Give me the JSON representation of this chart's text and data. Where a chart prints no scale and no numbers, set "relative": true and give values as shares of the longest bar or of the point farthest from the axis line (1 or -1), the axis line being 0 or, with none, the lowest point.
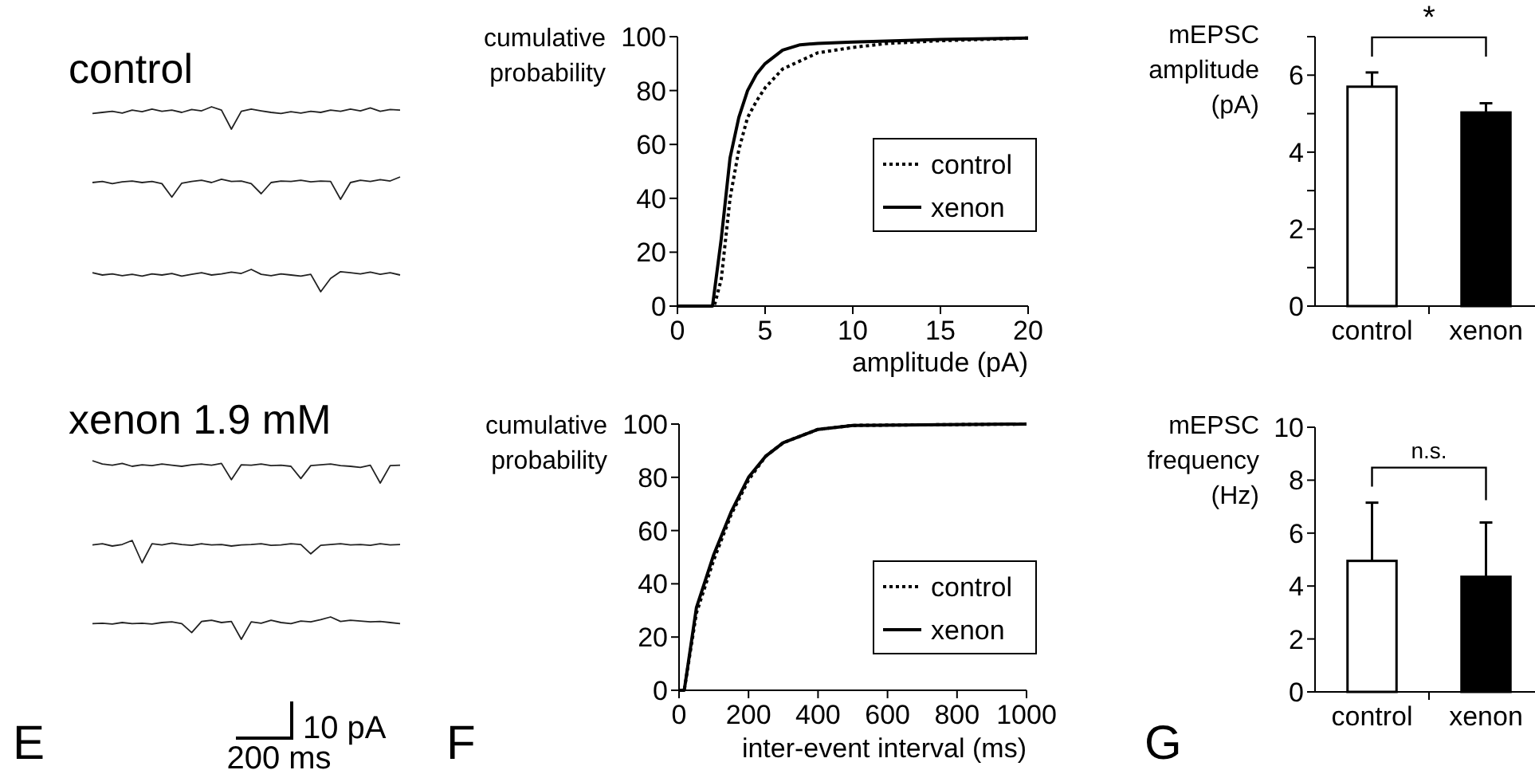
{
  "chart_data": [
    {
      "type": "other",
      "annotations": [
        "control",
        "xenon 1.9 mM",
        "10 pA",
        "200 ms",
        "E"
      ]
    },
    {
      "type": "line",
      "relative": true,
      "categories": [
        null,
        null,
        null,
        null,
        null,
        null,
        null,
        null,
        null,
        null,
        null,
        null,
        null,
        null,
        null,
        null,
        null,
        null,
        null,
        null,
        null,
        null,
        null,
        null,
        null,
        null,
        null,
        null,
        null,
        null,
        null,
        null
      ],
      "series": [
        {
          "color": "#222222",
          "values": [
            0.7,
            0.75,
            0.8,
            0.72,
            0.85,
            0.78,
            0.9,
            0.8,
            0.85,
            0.75,
            0.88,
            0.82,
            1,
            0.85,
            0,
            0.8,
            0.9,
            0.82,
            0.75,
            0.7,
            0.78,
            0.72,
            0.8,
            0.75,
            0.85,
            0.8,
            0.9,
            0.82,
            0.95,
            0.8,
            0.88,
            0.85
          ]
        }
      ]
    },
    {
      "type": "line",
      "relative": true,
      "categories": [
        null,
        null,
        null,
        null,
        null,
        null,
        null,
        null,
        null,
        null,
        null,
        null,
        null,
        null,
        null,
        null,
        null,
        null,
        null,
        null,
        null,
        null,
        null,
        null,
        null,
        null,
        null,
        null,
        null,
        null,
        null,
        null
      ],
      "series": [
        {
          "color": "#222222",
          "values": [
            0.75,
            0.8,
            0.7,
            0.78,
            0.82,
            0.75,
            0.8,
            0.7,
            0.1,
            0.72,
            0.8,
            0.85,
            0.75,
            0.9,
            0.8,
            0.82,
            0.7,
            0.25,
            0.75,
            0.82,
            0.8,
            0.85,
            0.78,
            0.82,
            0.8,
            0,
            0.75,
            0.85,
            0.8,
            0.88,
            0.82,
            1
          ]
        }
      ]
    },
    {
      "type": "line",
      "relative": true,
      "categories": [
        null,
        null,
        null,
        null,
        null,
        null,
        null,
        null,
        null,
        null,
        null,
        null,
        null,
        null,
        null,
        null,
        null,
        null,
        null,
        null,
        null,
        null,
        null,
        null,
        null,
        null,
        null,
        null,
        null,
        null,
        null,
        null
      ],
      "series": [
        {
          "color": "#222222",
          "values": [
            0.85,
            0.75,
            0.8,
            0.72,
            0.78,
            0.7,
            0.8,
            0.75,
            0.82,
            0.7,
            0.78,
            0.85,
            0.75,
            0.8,
            0.88,
            0.82,
            1,
            0.78,
            0.72,
            0.8,
            0.75,
            0.7,
            0.78,
            0,
            0.6,
            0.9,
            0.85,
            0.8,
            0.88,
            0.78,
            0.85,
            0.75
          ]
        }
      ]
    },
    {
      "type": "line",
      "relative": true,
      "categories": [
        null,
        null,
        null,
        null,
        null,
        null,
        null,
        null,
        null,
        null,
        null,
        null,
        null,
        null,
        null,
        null,
        null,
        null,
        null,
        null,
        null,
        null,
        null,
        null,
        null,
        null,
        null,
        null,
        null,
        null,
        null,
        null
      ],
      "series": [
        {
          "color": "#222222",
          "values": [
            1,
            0.85,
            0.8,
            0.88,
            0.75,
            0.82,
            0.78,
            0.85,
            0.8,
            0.75,
            0.82,
            0.85,
            0.8,
            0.88,
            0.15,
            0.82,
            0.8,
            0.85,
            0.78,
            0.8,
            0.75,
            0.2,
            0.78,
            0.82,
            0.85,
            0.78,
            0.75,
            0.7,
            0.8,
            0,
            0.78,
            0.8
          ]
        }
      ]
    },
    {
      "type": "line",
      "relative": true,
      "categories": [
        null,
        null,
        null,
        null,
        null,
        null,
        null,
        null,
        null,
        null,
        null,
        null,
        null,
        null,
        null,
        null,
        null,
        null,
        null,
        null,
        null,
        null,
        null,
        null,
        null,
        null,
        null,
        null,
        null,
        null,
        null,
        null
      ],
      "series": [
        {
          "color": "#222222",
          "values": [
            0.8,
            0.85,
            0.75,
            0.82,
            1,
            0,
            0.85,
            0.8,
            0.88,
            0.82,
            0.78,
            0.85,
            0.8,
            0.82,
            0.75,
            0.8,
            0.82,
            0.85,
            0.78,
            0.8,
            0.85,
            0.82,
            0.4,
            0.78,
            0.82,
            0.85,
            0.8,
            0.82,
            0.78,
            0.85,
            0.8,
            0.82
          ]
        }
      ]
    },
    {
      "type": "line",
      "relative": true,
      "categories": [
        null,
        null,
        null,
        null,
        null,
        null,
        null,
        null,
        null,
        null,
        null,
        null,
        null,
        null,
        null,
        null,
        null,
        null,
        null,
        null,
        null,
        null,
        null,
        null,
        null,
        null,
        null,
        null,
        null,
        null,
        null,
        null
      ],
      "series": [
        {
          "color": "#222222",
          "values": [
            0.7,
            0.72,
            0.68,
            0.75,
            0.7,
            0.72,
            0.68,
            0.75,
            0.78,
            0.7,
            0.3,
            0.8,
            0.85,
            0.75,
            0.8,
            0,
            0.78,
            0.72,
            0.85,
            0.75,
            0.7,
            0.82,
            0.78,
            0.88,
            1,
            0.8,
            0.85,
            0.82,
            0.78,
            0.8,
            0.75,
            0.7
          ]
        }
      ]
    },
    {
      "type": "line",
      "xlabel": "amplitude (pA)",
      "ylabel": "cumulative probability",
      "xlim": [
        0,
        20
      ],
      "xticks": [
        0,
        5,
        10,
        15,
        20
      ],
      "ylim": [
        0,
        100
      ],
      "yticks": [
        0,
        20,
        40,
        60,
        80,
        100
      ],
      "legend": "right",
      "marker": "none",
      "series": [
        {
          "name": "control",
          "color": "#000000",
          "line_style": "dotted",
          "x": [
            0,
            2.1,
            2.5,
            3,
            3.5,
            4,
            4.5,
            5,
            6,
            7,
            8,
            10,
            12,
            15,
            20
          ],
          "values": [
            0,
            0,
            10,
            40,
            58,
            70,
            76,
            81,
            88,
            91,
            94,
            96,
            97.5,
            98.5,
            99.5
          ]
        },
        {
          "name": "xenon",
          "color": "#000000",
          "line_style": "solid",
          "x": [
            0,
            2,
            2.5,
            3,
            3.5,
            4,
            4.5,
            5,
            6,
            7,
            8,
            10,
            15,
            20
          ],
          "values": [
            0,
            0,
            25,
            55,
            70,
            80,
            86,
            90,
            95,
            97,
            97.5,
            98,
            99,
            99.5
          ]
        }
      ]
    },
    {
      "type": "line",
      "xlabel": "inter-event interval (ms)",
      "ylabel": "cumulative probability",
      "xlim": [
        0,
        1000
      ],
      "xticks": [
        0,
        200,
        400,
        600,
        800,
        1000
      ],
      "ylim": [
        0,
        100
      ],
      "yticks": [
        0,
        20,
        40,
        60,
        80,
        100
      ],
      "legend": "bottom right",
      "marker": "none",
      "annotations": [
        "F"
      ],
      "series": [
        {
          "name": "control",
          "color": "#000000",
          "line_style": "dotted",
          "x": [
            0,
            15,
            50,
            100,
            150,
            200,
            250,
            300,
            400,
            500,
            1000
          ],
          "values": [
            0,
            0,
            29,
            49,
            66,
            79,
            88,
            93,
            98,
            99.5,
            100
          ]
        },
        {
          "name": "xenon",
          "color": "#000000",
          "line_style": "solid",
          "x": [
            0,
            15,
            50,
            100,
            150,
            200,
            250,
            300,
            400,
            500,
            1000
          ],
          "values": [
            0,
            0,
            31,
            51,
            67,
            80,
            88,
            93,
            98,
            99.5,
            100
          ]
        }
      ]
    },
    {
      "type": "bar",
      "ylabel": "mEPSC amplitude (pA)",
      "categories": [
        "control",
        "xenon"
      ],
      "values": [
        5.7,
        5.03
      ],
      "colors": [
        "#ffffff",
        "#000000"
      ],
      "errors": [
        [
          5.7,
          6.07
        ],
        [
          5.03,
          5.27
        ]
      ],
      "ylim": [
        0,
        7
      ],
      "yticks": [
        0,
        {
          "value": 1,
          "label": null
        },
        2,
        {
          "value": 3,
          "label": null
        },
        4,
        {
          "value": 5,
          "label": null
        },
        6,
        {
          "value": 7,
          "label": null
        }
      ],
      "annotations": [
        "*"
      ]
    },
    {
      "type": "bar",
      "ylabel": "mEPSC frequency (Hz)",
      "categories": [
        "control",
        "xenon"
      ],
      "values": [
        4.95,
        4.35
      ],
      "colors": [
        "#ffffff",
        "#000000"
      ],
      "errors": [
        [
          4.95,
          7.15
        ],
        [
          4.35,
          6.4
        ]
      ],
      "ylim": [
        0,
        10
      ],
      "yticks": [
        0,
        2,
        4,
        6,
        8,
        10
      ],
      "annotations": [
        "n.s.",
        "G"
      ]
    }
  ]
}
